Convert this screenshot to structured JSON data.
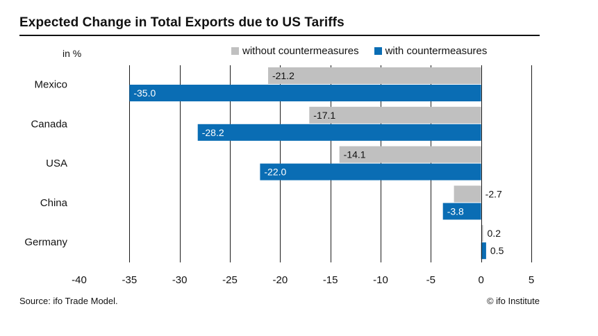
{
  "chart_data": {
    "type": "bar",
    "orientation": "horizontal",
    "title": "Expected Change in Total Exports due to US Tariffs",
    "unit_label": "in %",
    "categories": [
      "Mexico",
      "Canada",
      "USA",
      "China",
      "Germany"
    ],
    "series": [
      {
        "name": "without countermeasures",
        "color": "#c0c0c0",
        "values": [
          -21.2,
          -17.1,
          -14.1,
          -2.7,
          0.2
        ],
        "labels": [
          "-21.2",
          "-17.1",
          "-14.1",
          "-2.7",
          "0.2"
        ]
      },
      {
        "name": "with countermeasures",
        "color": "#0a6db4",
        "values": [
          -35.0,
          -28.2,
          -22.0,
          -3.8,
          0.5
        ],
        "labels": [
          "-35.0",
          "-28.2",
          "-22.0",
          "-3.8",
          "0.5"
        ]
      }
    ],
    "xlim": [
      -40,
      5
    ],
    "xticks": [
      -40,
      -35,
      -30,
      -25,
      -20,
      -15,
      -10,
      -5,
      0,
      5
    ],
    "xtick_labels": [
      "-40",
      "-35",
      "-30",
      "-25",
      "-20",
      "-15",
      "-10",
      "-5",
      "0",
      "5"
    ],
    "grid": "vertical",
    "legend_position": "top-right",
    "source": "Source: ifo Trade Model.",
    "copyright": "© ifo Institute"
  }
}
